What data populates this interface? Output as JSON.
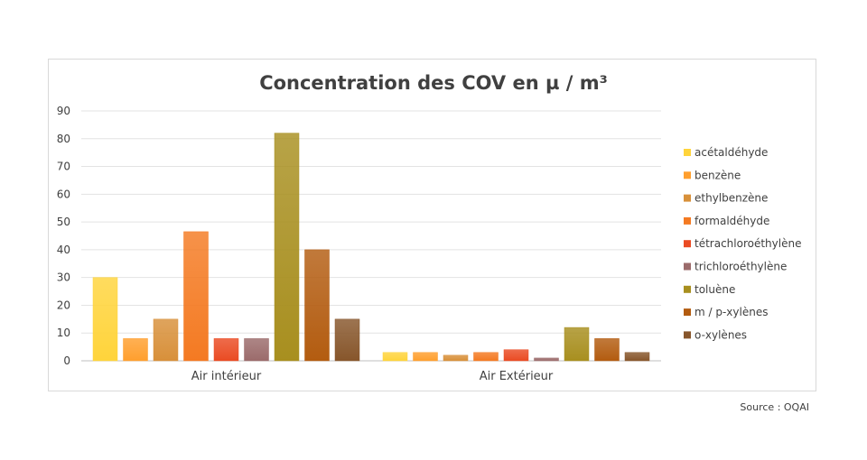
{
  "chart_data": {
    "type": "bar",
    "title": "Concentration des COV en µ / m³",
    "xlabel": "",
    "ylabel": "",
    "ylim": [
      0,
      90
    ],
    "yticks": [
      0,
      10,
      20,
      30,
      40,
      50,
      60,
      70,
      80,
      90
    ],
    "grid": true,
    "legend_position": "right",
    "categories": [
      "Air intérieur",
      "Air Extérieur"
    ],
    "series": [
      {
        "name": "acétaldéhyde",
        "values": [
          30,
          3
        ],
        "color": "#ffd43b"
      },
      {
        "name": "benzène",
        "values": [
          8,
          3
        ],
        "color": "#ff9f2e"
      },
      {
        "name": "ethylbenzène",
        "values": [
          15,
          2
        ],
        "color": "#d8903a"
      },
      {
        "name": "formaldéhyde",
        "values": [
          46.5,
          3
        ],
        "color": "#f47a22"
      },
      {
        "name": "tétrachloroéthylène",
        "values": [
          8,
          4
        ],
        "color": "#ea4b23"
      },
      {
        "name": "trichloroéthylène",
        "values": [
          8,
          1
        ],
        "color": "#9b6b6b"
      },
      {
        "name": "toluène",
        "values": [
          82,
          12
        ],
        "color": "#a88f1f"
      },
      {
        "name": "m / p-xylènes",
        "values": [
          40,
          8
        ],
        "color": "#b35c10"
      },
      {
        "name": "o-xylènes",
        "values": [
          15,
          3
        ],
        "color": "#87562b"
      }
    ]
  },
  "source": "Source : OQAI"
}
